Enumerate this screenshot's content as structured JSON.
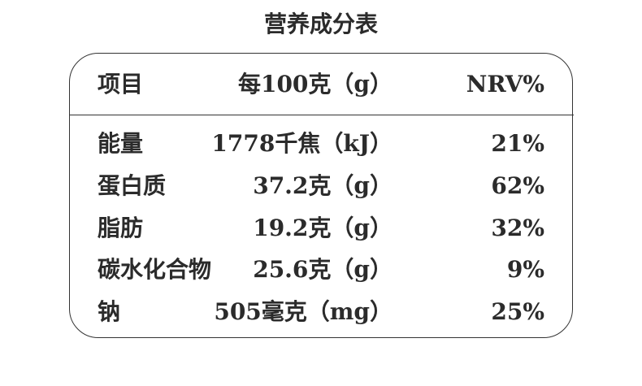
{
  "title": "营养成分表",
  "table": {
    "header": [
      "项目",
      "每100克（g）",
      "NRV%"
    ],
    "rows": [
      [
        "能量",
        "1778千焦（kJ）",
        "21%"
      ],
      [
        "蛋白质",
        "37.2克（g）",
        "62%"
      ],
      [
        "脂肪",
        "19.2克（g）",
        "32%"
      ],
      [
        "碳水化合物",
        "25.6克（g）",
        "9%"
      ],
      [
        "钠",
        "505毫克（mg）",
        "25%"
      ]
    ]
  }
}
